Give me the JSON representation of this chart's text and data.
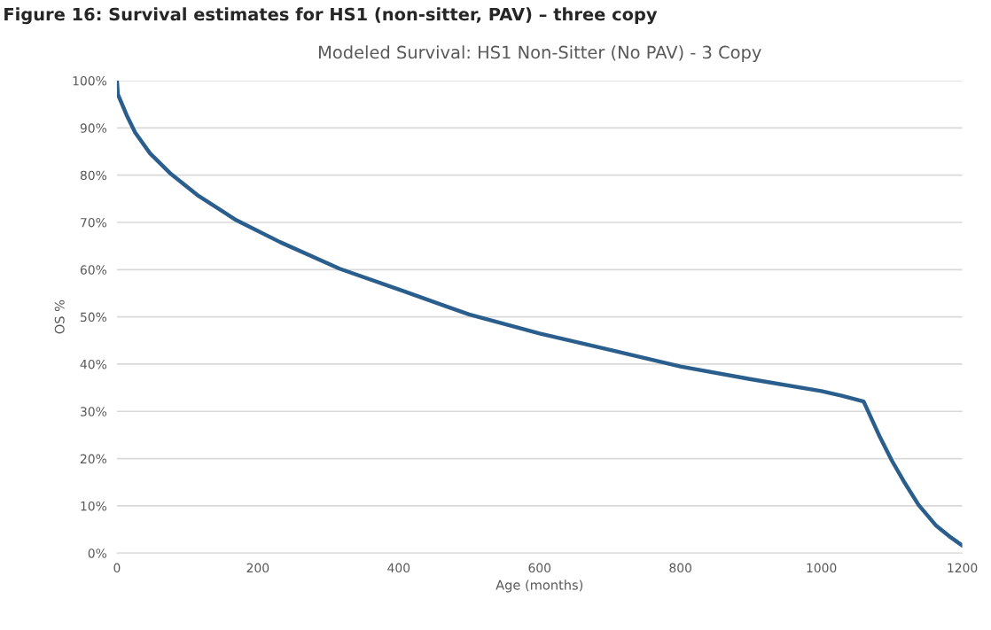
{
  "chart_data": {
    "type": "line",
    "title": "Modeled Survival: HS1 Non-Sitter (No PAV) - 3 Copy",
    "annotations": [
      "Figure 16: Survival estimates for HS1 (non-sitter, PAV) – three copy"
    ],
    "xlabel": "Age (months)",
    "ylabel": "OS %",
    "series": [
      {
        "color": "#2a5e8c",
        "x": [
          0,
          1.3,
          13.8,
          26,
          47,
          77,
          114,
          169,
          232,
          316,
          408,
          500,
          600,
          700,
          800,
          900,
          1000,
          1029,
          1060,
          1083,
          1100,
          1117,
          1138,
          1163,
          1184,
          1200
        ],
        "values": [
          100,
          97.1,
          92.7,
          89,
          84.6,
          80.2,
          75.8,
          70.5,
          65.8,
          60.2,
          55.4,
          50.5,
          46.5,
          43,
          39.5,
          36.8,
          34.3,
          33.3,
          32.1,
          24.6,
          19.6,
          15.2,
          10.2,
          5.8,
          3.3,
          1.6
        ]
      }
    ],
    "xlim": [
      0,
      1200
    ],
    "xticks": [
      0,
      200,
      400,
      600,
      800,
      1000,
      1200
    ],
    "ylim": [
      0,
      100
    ],
    "yticks": [
      {
        "value": 0,
        "label": "0%"
      },
      {
        "value": 10,
        "label": "10%"
      },
      {
        "value": 20,
        "label": "20%"
      },
      {
        "value": 30,
        "label": "30%"
      },
      {
        "value": 40,
        "label": "40%"
      },
      {
        "value": 50,
        "label": "50%"
      },
      {
        "value": 60,
        "label": "60%"
      },
      {
        "value": 70,
        "label": "70%"
      },
      {
        "value": 80,
        "label": "80%"
      },
      {
        "value": 90,
        "label": "90%"
      },
      {
        "value": 100,
        "label": "100%"
      }
    ],
    "grid": "y",
    "legend": false,
    "marker": "none",
    "line_style": "solid"
  }
}
